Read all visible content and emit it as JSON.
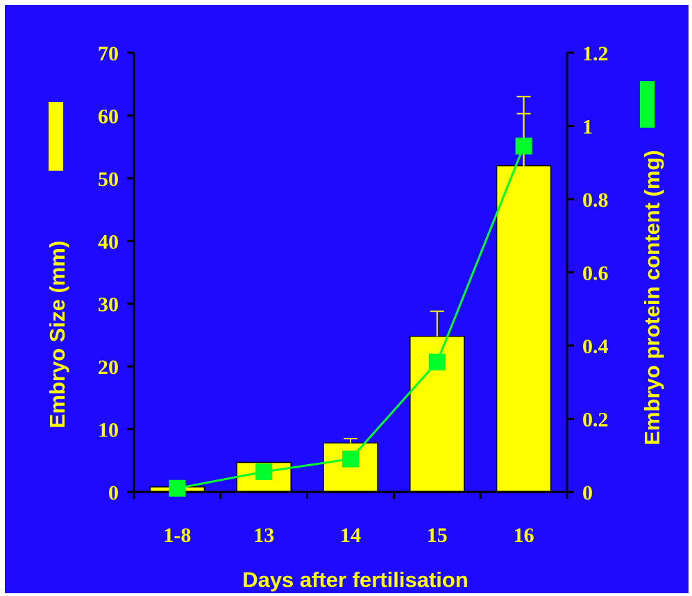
{
  "chart_data": {
    "type": "bar",
    "categories": [
      "1-8",
      "13",
      "14",
      "15",
      "16"
    ],
    "xlabel": "Days after fertilisation",
    "ylabel": "Embryo Size (mm)",
    "y2label": "Embryo protein content (mg)",
    "ylim": [
      0,
      70
    ],
    "y2lim": [
      0,
      1.2
    ],
    "yticks": [
      "0",
      "10",
      "20",
      "30",
      "40",
      "50",
      "60",
      "70"
    ],
    "y2ticks": [
      "0",
      "0.2",
      "0.4",
      "0.6",
      "0.8",
      "1",
      "1.2"
    ],
    "series": [
      {
        "kind": "bar",
        "axis": "left",
        "values": [
          0.8,
          4.7,
          7.8,
          24.8,
          52.0
        ],
        "error": [
          0,
          0,
          0.7,
          4.0,
          8.3
        ]
      },
      {
        "kind": "line",
        "axis": "right",
        "values": [
          0.01,
          0.055,
          0.09,
          0.355,
          0.945
        ],
        "error": [
          0,
          0,
          0,
          0.06,
          0.135
        ]
      }
    ],
    "colors": {
      "background": "#1e0bff",
      "bar": "#ffff00",
      "line": "#00ff2a",
      "text": "#ffff00",
      "axis": "#000000"
    },
    "legend": {
      "left_swatch_color": "#ffff00",
      "right_swatch_color": "#00ff2a"
    },
    "grid": false
  }
}
